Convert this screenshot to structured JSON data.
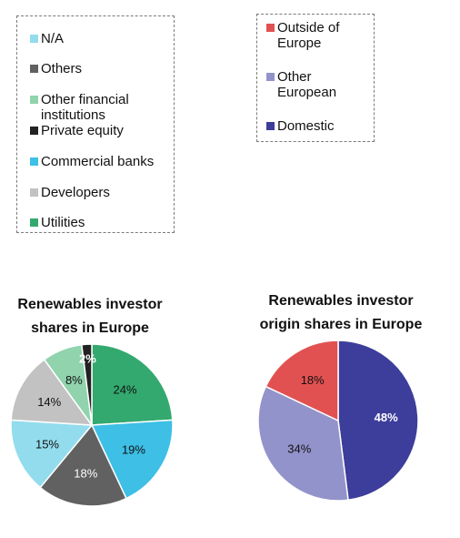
{
  "legend_investor": [
    {
      "label": "N/A",
      "color": "#93dced"
    },
    {
      "label": "Others",
      "color": "#616161"
    },
    {
      "label": "Other financial\ninstitutions",
      "color": "#90d3ac"
    },
    {
      "label": "Private equity",
      "color": "#222222"
    },
    {
      "label": "Commercial banks",
      "color": "#3dbfe6"
    },
    {
      "label": "Developers",
      "color": "#c2c2c2"
    },
    {
      "label": "Utilities",
      "color": "#34a96f"
    }
  ],
  "legend_origin": [
    {
      "label": "Outside of\nEurope",
      "color": "#e25151"
    },
    {
      "label": "Other\nEuropean",
      "color": "#9393cb"
    },
    {
      "label": "Domestic",
      "color": "#3d3d9b"
    }
  ],
  "chart_data": [
    {
      "type": "pie",
      "title": "Renewables investor\nshares in Europe",
      "slices": [
        {
          "name": "Utilities",
          "value": 24,
          "label": "24%",
          "color": "#34a96f"
        },
        {
          "name": "Commercial banks",
          "value": 19,
          "label": "19%",
          "color": "#3dbfe6"
        },
        {
          "name": "Others",
          "value": 18,
          "label": "18%",
          "color": "#616161"
        },
        {
          "name": "N/A",
          "value": 15,
          "label": "15%",
          "color": "#93dced"
        },
        {
          "name": "Developers",
          "value": 14,
          "label": "14%",
          "color": "#c2c2c2"
        },
        {
          "name": "Other financial institutions",
          "value": 8,
          "label": "8%",
          "color": "#90d3ac"
        },
        {
          "name": "Private equity",
          "value": 2,
          "label": "2%",
          "color": "#222222"
        }
      ]
    },
    {
      "type": "pie",
      "title": "Renewables investor\norigin shares in Europe",
      "slices": [
        {
          "name": "Domestic",
          "value": 48,
          "label": "48%",
          "color": "#3d3d9b"
        },
        {
          "name": "Other European",
          "value": 34,
          "label": "34%",
          "color": "#9393cb"
        },
        {
          "name": "Outside of Europe",
          "value": 18,
          "label": "18%",
          "color": "#e25151"
        }
      ]
    }
  ]
}
